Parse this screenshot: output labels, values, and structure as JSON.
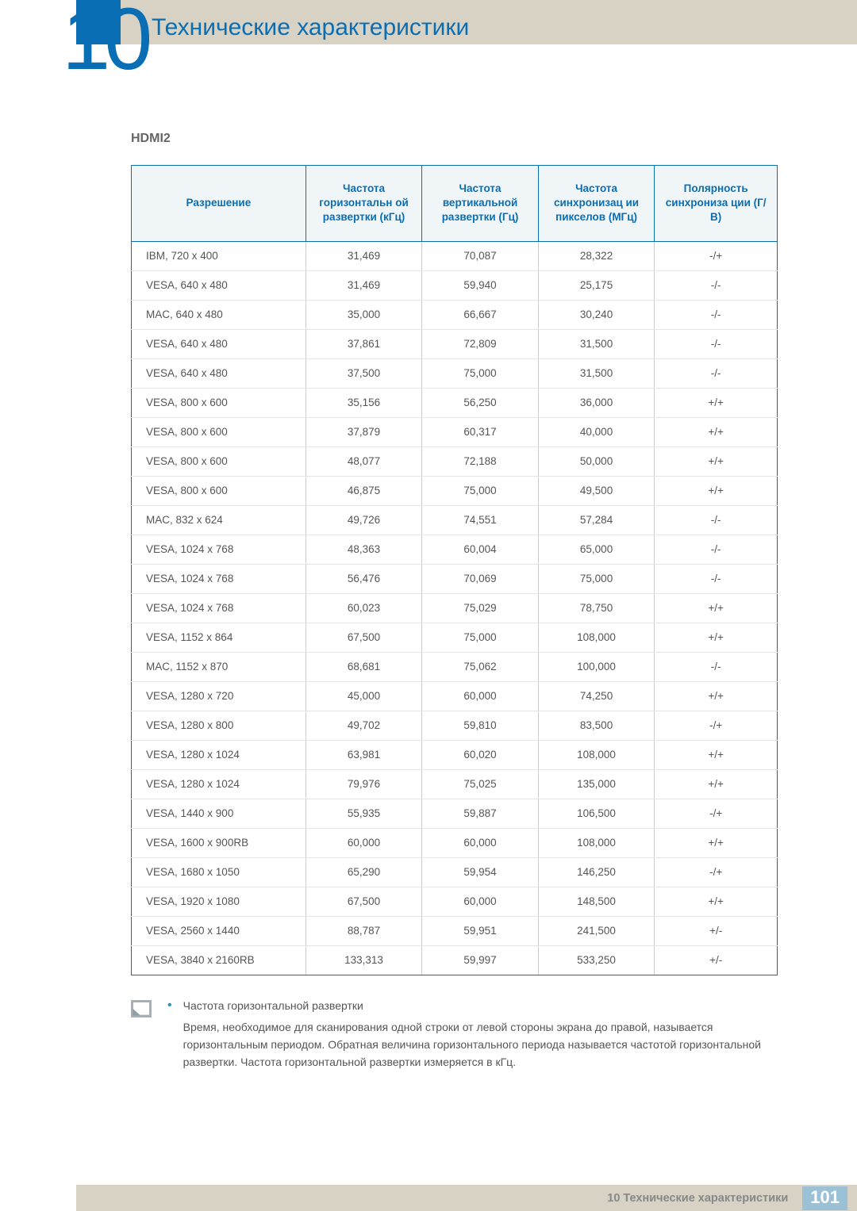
{
  "chapter": {
    "number": "10",
    "title": "Технические характеристики"
  },
  "section_label": "HDMI2",
  "table": {
    "headers": [
      "Разрешение",
      "Частота горизонтальн ой развертки (кГц)",
      "Частота вертикальной развертки (Гц)",
      "Частота синхронизац ии пикселов (МГц)",
      "Полярность синхрониза ции (Г/В)"
    ],
    "rows": [
      [
        "IBM, 720 x 400",
        "31,469",
        "70,087",
        "28,322",
        "-/+"
      ],
      [
        "VESA, 640 x 480",
        "31,469",
        "59,940",
        "25,175",
        "-/-"
      ],
      [
        "MAC, 640 x 480",
        "35,000",
        "66,667",
        "30,240",
        "-/-"
      ],
      [
        "VESA, 640 x 480",
        "37,861",
        "72,809",
        "31,500",
        "-/-"
      ],
      [
        "VESA, 640 x 480",
        "37,500",
        "75,000",
        "31,500",
        "-/-"
      ],
      [
        "VESA, 800 x 600",
        "35,156",
        "56,250",
        "36,000",
        "+/+"
      ],
      [
        "VESA, 800 x 600",
        "37,879",
        "60,317",
        "40,000",
        "+/+"
      ],
      [
        "VESA, 800 x 600",
        "48,077",
        "72,188",
        "50,000",
        "+/+"
      ],
      [
        "VESA, 800 x 600",
        "46,875",
        "75,000",
        "49,500",
        "+/+"
      ],
      [
        "MAC, 832 x 624",
        "49,726",
        "74,551",
        "57,284",
        "-/-"
      ],
      [
        "VESA, 1024 x 768",
        "48,363",
        "60,004",
        "65,000",
        "-/-"
      ],
      [
        "VESA, 1024 x 768",
        "56,476",
        "70,069",
        "75,000",
        "-/-"
      ],
      [
        "VESA, 1024 x 768",
        "60,023",
        "75,029",
        "78,750",
        "+/+"
      ],
      [
        "VESA, 1152 x 864",
        "67,500",
        "75,000",
        "108,000",
        "+/+"
      ],
      [
        "MAC, 1152 x 870",
        "68,681",
        "75,062",
        "100,000",
        "-/-"
      ],
      [
        "VESA, 1280 x 720",
        "45,000",
        "60,000",
        "74,250",
        "+/+"
      ],
      [
        "VESA, 1280 x 800",
        "49,702",
        "59,810",
        "83,500",
        "-/+"
      ],
      [
        "VESA, 1280 x 1024",
        "63,981",
        "60,020",
        "108,000",
        "+/+"
      ],
      [
        "VESA, 1280 x 1024",
        "79,976",
        "75,025",
        "135,000",
        "+/+"
      ],
      [
        "VESA, 1440 x 900",
        "55,935",
        "59,887",
        "106,500",
        "-/+"
      ],
      [
        "VESA, 1600 x 900RB",
        "60,000",
        "60,000",
        "108,000",
        "+/+"
      ],
      [
        "VESA, 1680 x 1050",
        "65,290",
        "59,954",
        "146,250",
        "-/+"
      ],
      [
        "VESA, 1920 x 1080",
        "67,500",
        "60,000",
        "148,500",
        "+/+"
      ],
      [
        "VESA, 2560 x 1440",
        "88,787",
        "59,951",
        "241,500",
        "+/-"
      ],
      [
        "VESA, 3840 x 2160RB",
        "133,313",
        "59,997",
        "533,250",
        "+/-"
      ]
    ]
  },
  "note": {
    "heading": "Частота горизонтальной развертки",
    "body": "Время, необходимое для сканирования одной строки от левой стороны экрана до правой, называется горизонтальным периодом. Обратная величина горизонтального периода называется частотой горизонтальной развертки. Частота горизонтальной развертки измеряется в кГц."
  },
  "footer": {
    "breadcrumb": "10 Технические характеристики",
    "page": "101"
  }
}
